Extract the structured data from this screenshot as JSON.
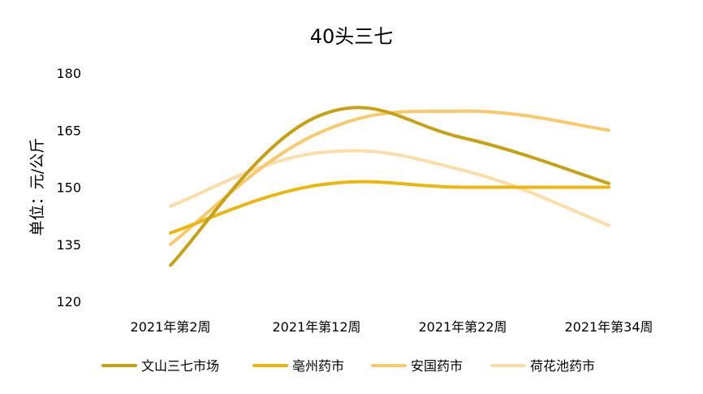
{
  "chart_data": {
    "type": "line",
    "title": "40头三七",
    "ylabel": "单位：元/公斤",
    "xlabel": "",
    "categories": [
      "2021年第2周",
      "2021年第12周",
      "2021年第22周",
      "2021年第34周"
    ],
    "ylim": [
      120,
      180
    ],
    "yticks": [
      120,
      135,
      150,
      165,
      180
    ],
    "grid": false,
    "smooth": true,
    "legend": "bottom",
    "series": [
      {
        "name": "文山三七市场",
        "color": "#C9A012",
        "values": [
          129.5,
          168.5,
          163,
          151
        ]
      },
      {
        "name": "亳州药市",
        "color": "#EDB60F",
        "values": [
          138,
          150.5,
          150,
          150
        ]
      },
      {
        "name": "安国药市",
        "color": "#F9C96A",
        "values": [
          135,
          164,
          170,
          165
        ]
      },
      {
        "name": "荷花池药市",
        "color": "#FCDDA8",
        "values": [
          145,
          159,
          154.5,
          140
        ]
      }
    ]
  }
}
